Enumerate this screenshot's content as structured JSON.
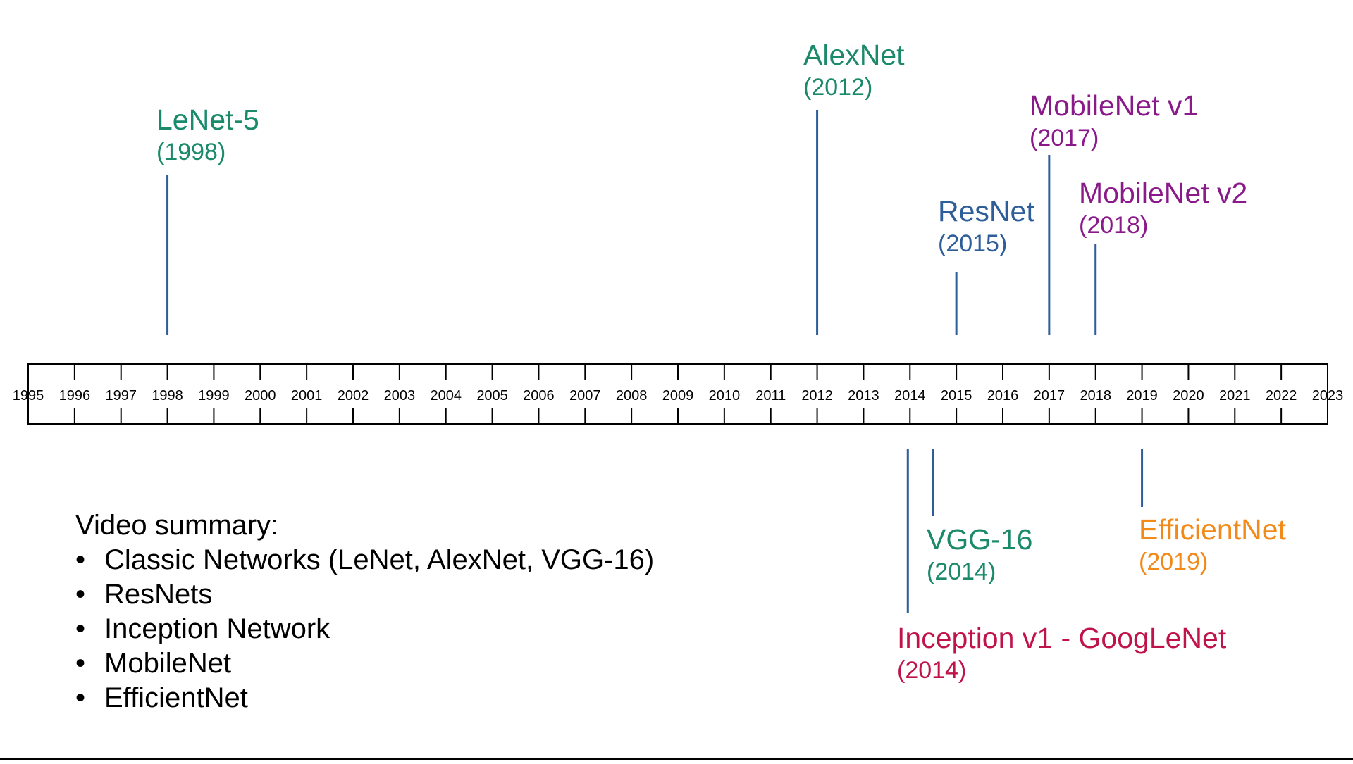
{
  "timeline": {
    "start_year": 1995,
    "end_year": 2023,
    "years": [
      "1995",
      "1996",
      "1997",
      "1998",
      "1999",
      "2000",
      "2001",
      "2002",
      "2003",
      "2004",
      "2005",
      "2006",
      "2007",
      "2008",
      "2009",
      "2010",
      "2011",
      "2012",
      "2013",
      "2014",
      "2015",
      "2016",
      "2017",
      "2018",
      "2019",
      "2020",
      "2021",
      "2022",
      "2023"
    ],
    "axis_color": "#000000",
    "marker_color": "#2e5e9a"
  },
  "events": [
    {
      "name": "LeNet-5",
      "year_label": "(1998)",
      "year": 1998,
      "side": "above",
      "color": "#1a8a6a"
    },
    {
      "name": "AlexNet",
      "year_label": "(2012)",
      "year": 2012,
      "side": "above",
      "color": "#1a8a6a"
    },
    {
      "name": "ResNet",
      "year_label": "(2015)",
      "year": 2015,
      "side": "above",
      "color": "#2e5e9a"
    },
    {
      "name": "MobileNet v1",
      "year_label": "(2017)",
      "year": 2017,
      "side": "above",
      "color": "#8a1a8a"
    },
    {
      "name": "MobileNet v2",
      "year_label": "(2018)",
      "year": 2018,
      "side": "above",
      "color": "#8a1a8a"
    },
    {
      "name": "VGG-16",
      "year_label": "(2014)",
      "year": 2014.5,
      "side": "below",
      "color": "#1a8a6a"
    },
    {
      "name": "Inception v1 - GoogLeNet",
      "year_label": "(2014)",
      "year": 2014,
      "side": "below",
      "color": "#c0134a"
    },
    {
      "name": "EfficientNet",
      "year_label": "(2019)",
      "year": 2019,
      "side": "below",
      "color": "#f28a1a"
    }
  ],
  "summary": {
    "heading": "Video summary:",
    "bullet_glyph": "•",
    "items": [
      "Classic Networks (LeNet, AlexNet, VGG-16)",
      "ResNets",
      "Inception Network",
      "MobileNet",
      "EfficientNet"
    ]
  }
}
